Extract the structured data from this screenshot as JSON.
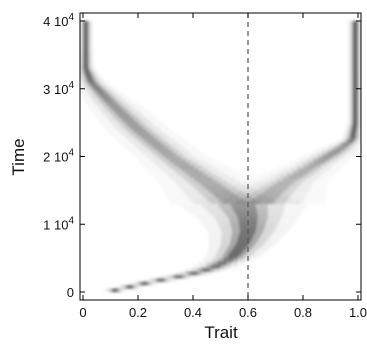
{
  "chart_data": {
    "type": "heatmap",
    "xlabel": "Trait",
    "ylabel": "Time",
    "xlim": [
      0,
      1
    ],
    "ylim": [
      0,
      40000
    ],
    "x_ticks": [
      {
        "value": 0,
        "label": "0"
      },
      {
        "value": 0.2,
        "label": "0.2"
      },
      {
        "value": 0.4,
        "label": "0.4"
      },
      {
        "value": 0.6,
        "label": "0.6"
      },
      {
        "value": 0.8,
        "label": "0.8"
      },
      {
        "value": 1.0,
        "label": "1.0"
      }
    ],
    "y_ticks": [
      {
        "value": 0,
        "mantissa": "0",
        "exponent": ""
      },
      {
        "value": 10000,
        "mantissa": "1 10",
        "exponent": "4"
      },
      {
        "value": 20000,
        "mantissa": "2 10",
        "exponent": "4"
      },
      {
        "value": 30000,
        "mantissa": "3 10",
        "exponent": "4"
      },
      {
        "value": 40000,
        "mantissa": "4 10",
        "exponent": "4"
      }
    ],
    "reference_line": {
      "x": 0.6,
      "style": "dashed"
    },
    "colormap": "greyscale (white = low density, black = high density)",
    "branches": [
      {
        "name": "initial",
        "points": [
          {
            "t": 0,
            "x": 0.09,
            "w": 0.015,
            "d": 0.95
          },
          {
            "t": 1500,
            "x": 0.25,
            "w": 0.02,
            "d": 0.85
          },
          {
            "t": 2500,
            "x": 0.38,
            "w": 0.025,
            "d": 0.8
          },
          {
            "t": 3500,
            "x": 0.47,
            "w": 0.03,
            "d": 0.8
          },
          {
            "t": 5000,
            "x": 0.54,
            "w": 0.035,
            "d": 0.75
          },
          {
            "t": 7000,
            "x": 0.58,
            "w": 0.045,
            "d": 0.7
          },
          {
            "t": 9000,
            "x": 0.6,
            "w": 0.055,
            "d": 0.65
          },
          {
            "t": 11000,
            "x": 0.6,
            "w": 0.07,
            "d": 0.55
          },
          {
            "t": 13000,
            "x": 0.58,
            "w": 0.09,
            "d": 0.45
          }
        ]
      },
      {
        "name": "left",
        "points": [
          {
            "t": 13000,
            "x": 0.56,
            "w": 0.09,
            "d": 0.4
          },
          {
            "t": 16000,
            "x": 0.46,
            "w": 0.07,
            "d": 0.38
          },
          {
            "t": 20000,
            "x": 0.32,
            "w": 0.05,
            "d": 0.4
          },
          {
            "t": 24000,
            "x": 0.2,
            "w": 0.045,
            "d": 0.45
          },
          {
            "t": 28000,
            "x": 0.1,
            "w": 0.035,
            "d": 0.5
          },
          {
            "t": 31000,
            "x": 0.03,
            "w": 0.02,
            "d": 0.65
          },
          {
            "t": 33000,
            "x": 0.01,
            "w": 0.012,
            "d": 0.8
          },
          {
            "t": 36000,
            "x": 0.01,
            "w": 0.01,
            "d": 0.85
          },
          {
            "t": 40000,
            "x": 0.01,
            "w": 0.01,
            "d": 0.85
          }
        ]
      },
      {
        "name": "right",
        "points": [
          {
            "t": 13000,
            "x": 0.64,
            "w": 0.09,
            "d": 0.35
          },
          {
            "t": 16000,
            "x": 0.73,
            "w": 0.06,
            "d": 0.33
          },
          {
            "t": 19000,
            "x": 0.85,
            "w": 0.04,
            "d": 0.38
          },
          {
            "t": 21000,
            "x": 0.93,
            "w": 0.03,
            "d": 0.5
          },
          {
            "t": 22500,
            "x": 0.98,
            "w": 0.015,
            "d": 0.75
          },
          {
            "t": 25000,
            "x": 0.99,
            "w": 0.01,
            "d": 0.88
          },
          {
            "t": 32000,
            "x": 0.99,
            "w": 0.01,
            "d": 0.9
          },
          {
            "t": 40000,
            "x": 0.99,
            "w": 0.01,
            "d": 0.9
          }
        ]
      }
    ]
  }
}
